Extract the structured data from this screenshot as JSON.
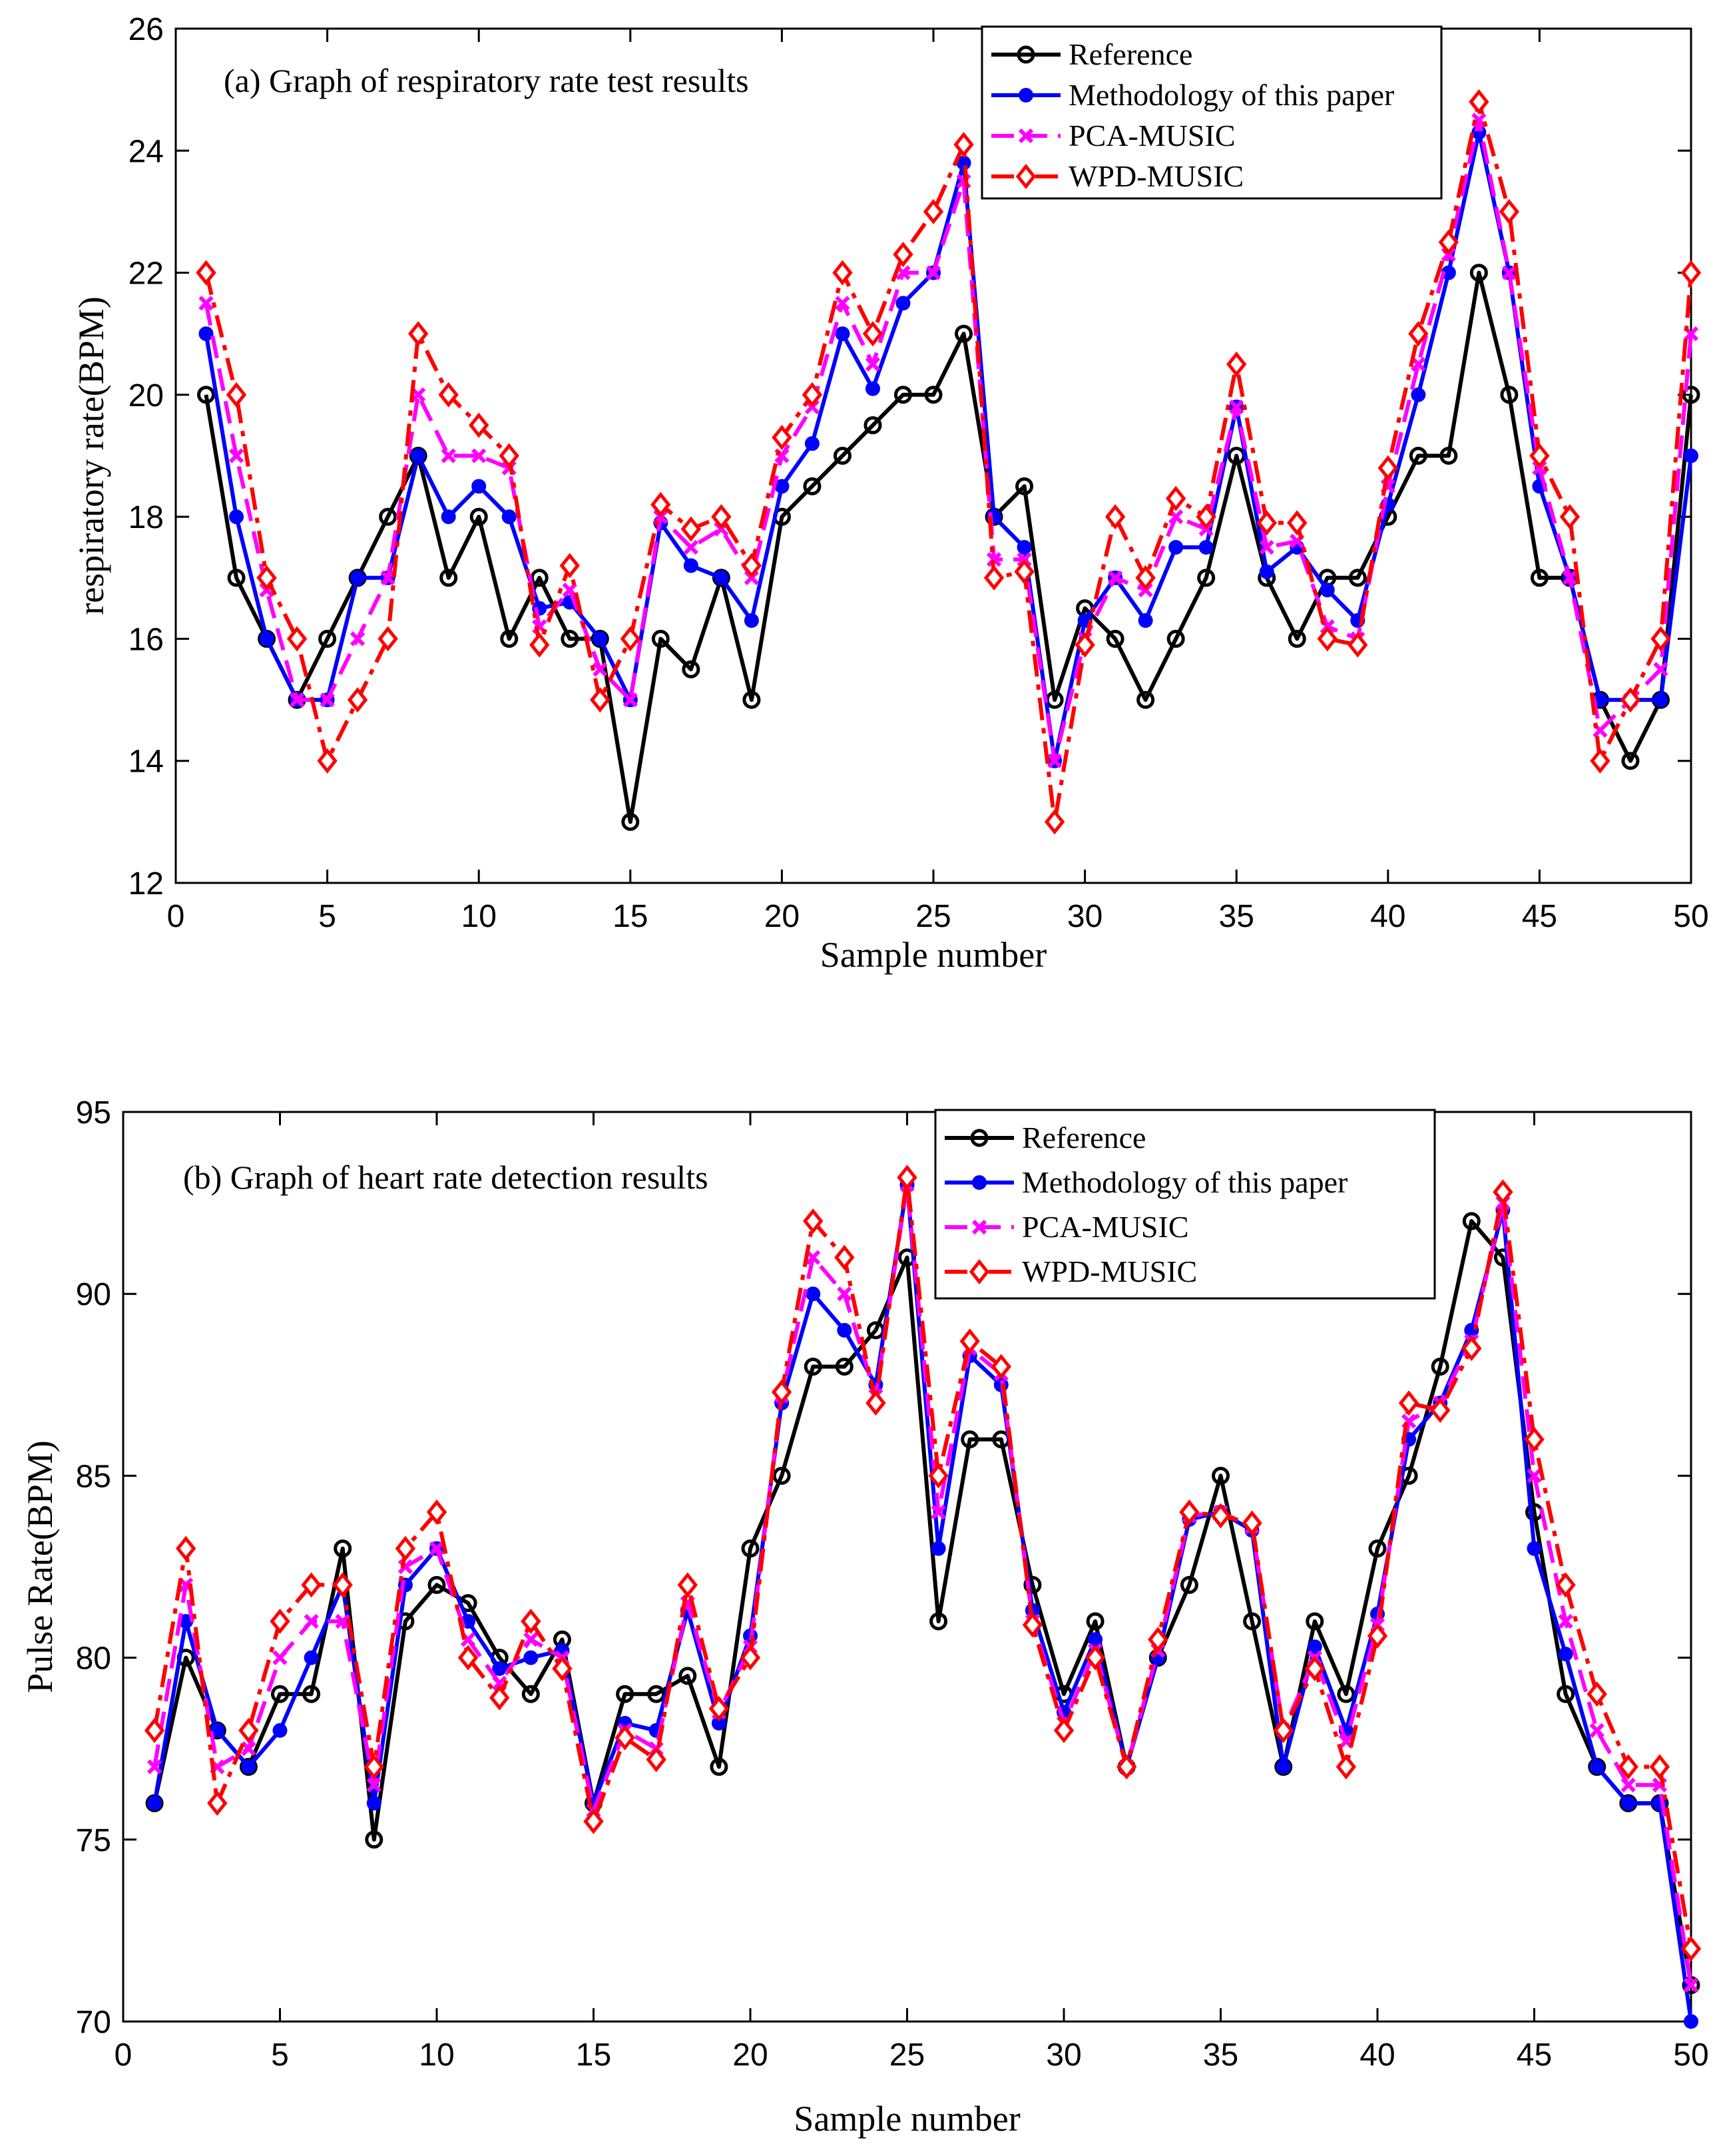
{
  "chart_data": [
    {
      "type": "line",
      "title": "(a) Graph of respiratory rate test results",
      "xlabel": "Sample number",
      "ylabel": "respiratory rate(BPM)",
      "xlim": [
        0,
        50
      ],
      "ylim": [
        12,
        26
      ],
      "xticks": [
        0,
        5,
        10,
        15,
        20,
        25,
        30,
        35,
        40,
        45,
        50
      ],
      "yticks": [
        12,
        14,
        16,
        18,
        20,
        22,
        24,
        26
      ],
      "legend_position": "top-right",
      "x": [
        1,
        2,
        3,
        4,
        5,
        6,
        7,
        8,
        9,
        10,
        11,
        12,
        13,
        14,
        15,
        16,
        17,
        18,
        19,
        20,
        21,
        22,
        23,
        24,
        25,
        26,
        27,
        28,
        29,
        30,
        31,
        32,
        33,
        34,
        35,
        36,
        37,
        38,
        39,
        40,
        41,
        42,
        43,
        44,
        45,
        46,
        47,
        48,
        49,
        50
      ],
      "series": [
        {
          "name": "Reference",
          "color": "#000000",
          "marker": "circle",
          "dash": "solid",
          "values": [
            20,
            17,
            16,
            15,
            16,
            17,
            18,
            19,
            17,
            18,
            16,
            17,
            16,
            16,
            13,
            16,
            15.5,
            17,
            15,
            18,
            18.5,
            19,
            19.5,
            20,
            20,
            21,
            18,
            18.5,
            15,
            16.5,
            16,
            15,
            16,
            17,
            19,
            17,
            16,
            17,
            17,
            18,
            19,
            19,
            22,
            20,
            17,
            17,
            15,
            14,
            15,
            20
          ]
        },
        {
          "name": "Methodology of this paper",
          "color": "#0000ff",
          "marker": "dot",
          "dash": "solid",
          "values": [
            21,
            18,
            16,
            15,
            15,
            17,
            17,
            19,
            18,
            18.5,
            18,
            16.5,
            16.6,
            16,
            15,
            17.9,
            17.2,
            17,
            16.3,
            18.5,
            19.2,
            21,
            20.1,
            21.5,
            22,
            23.8,
            18,
            17.5,
            14,
            16.3,
            17,
            16.3,
            17.5,
            17.5,
            19.8,
            17.1,
            17.5,
            16.8,
            16.3,
            18.2,
            20,
            22,
            24.3,
            22,
            18.5,
            17,
            15,
            15,
            15,
            19
          ]
        },
        {
          "name": "PCA-MUSIC",
          "color": "#ff00ff",
          "marker": "x",
          "dash": "dash",
          "values": [
            21.5,
            19,
            16.8,
            15,
            15,
            16,
            17,
            20,
            19,
            19,
            18.8,
            16.2,
            16.8,
            15.5,
            15,
            18,
            17.5,
            17.8,
            17,
            19,
            19.8,
            21.5,
            20.5,
            22,
            22,
            23.5,
            17.3,
            17.3,
            14,
            16,
            17,
            16.8,
            18,
            17.8,
            19.8,
            17.5,
            17.6,
            16.2,
            16,
            18.5,
            20.5,
            22.3,
            24.5,
            22,
            18.8,
            17,
            14.5,
            15,
            15.5,
            21
          ]
        },
        {
          "name": "WPD-MUSIC",
          "color": "#ff0000",
          "marker": "diamond",
          "dash": "dashdot",
          "values": [
            22,
            20,
            17,
            16,
            14,
            15,
            16,
            21,
            20,
            19.5,
            19,
            15.9,
            17.2,
            15,
            16,
            18.2,
            17.8,
            18,
            17.2,
            19.3,
            20,
            22,
            21,
            22.3,
            23,
            24.1,
            17,
            17.1,
            13,
            15.9,
            18,
            17,
            18.3,
            18,
            20.5,
            17.9,
            17.9,
            16,
            15.9,
            18.8,
            21,
            22.5,
            24.8,
            23,
            19,
            18,
            14,
            15,
            16,
            22
          ]
        }
      ]
    },
    {
      "type": "line",
      "title": "(b) Graph of heart rate detection results",
      "xlabel": "Sample number",
      "ylabel": "Pulse Rate(BPM)",
      "xlim": [
        0,
        50
      ],
      "ylim": [
        70,
        95
      ],
      "xticks": [
        0,
        5,
        10,
        15,
        20,
        25,
        30,
        35,
        40,
        45,
        50
      ],
      "yticks": [
        70,
        75,
        80,
        85,
        90,
        95
      ],
      "legend_position": "top-right",
      "x": [
        1,
        2,
        3,
        4,
        5,
        6,
        7,
        8,
        9,
        10,
        11,
        12,
        13,
        14,
        15,
        16,
        17,
        18,
        19,
        20,
        21,
        22,
        23,
        24,
        25,
        26,
        27,
        28,
        29,
        30,
        31,
        32,
        33,
        34,
        35,
        36,
        37,
        38,
        39,
        40,
        41,
        42,
        43,
        44,
        45,
        46,
        47,
        48,
        49,
        50
      ],
      "series": [
        {
          "name": "Reference",
          "color": "#000000",
          "marker": "circle",
          "dash": "solid",
          "values": [
            76,
            80,
            78,
            77,
            79,
            79,
            83,
            75,
            81,
            82,
            81.5,
            80,
            79,
            80.5,
            76,
            79,
            79,
            79.5,
            77,
            83,
            85,
            88,
            88,
            89,
            91,
            81,
            86,
            86,
            82,
            79,
            81,
            77,
            80,
            82,
            85,
            81,
            77,
            81,
            79,
            83,
            85,
            88,
            92,
            91,
            84,
            79,
            77,
            76,
            76,
            71
          ]
        },
        {
          "name": "Methodology of this paper",
          "color": "#0000ff",
          "marker": "dot",
          "dash": "solid",
          "values": [
            76,
            81,
            78,
            77,
            78,
            80,
            82,
            76,
            82,
            83,
            81,
            79.7,
            80,
            80.2,
            76,
            78.2,
            78,
            81.3,
            78.2,
            80.6,
            87,
            90,
            89,
            87.5,
            93,
            83,
            88.3,
            87.5,
            81.3,
            78.5,
            80.5,
            77,
            80,
            83.8,
            84,
            83.5,
            77,
            80.3,
            78,
            81.2,
            86,
            87,
            89,
            92.3,
            83,
            80.1,
            77,
            76,
            76,
            70
          ]
        },
        {
          "name": "PCA-MUSIC",
          "color": "#ff00ff",
          "marker": "x",
          "dash": "dash",
          "values": [
            77,
            82,
            77,
            77.5,
            80,
            81,
            81,
            76.5,
            82.5,
            83,
            80.5,
            79.3,
            80.5,
            80,
            75.8,
            78,
            77.5,
            81.5,
            78.5,
            80.3,
            87.2,
            91,
            90,
            87.2,
            93,
            84,
            88.5,
            87.8,
            81,
            78.2,
            80.2,
            77,
            80.2,
            83.9,
            84,
            83.6,
            78,
            80,
            77.7,
            80.9,
            86.5,
            87,
            88.7,
            92.5,
            85,
            81,
            78,
            76.5,
            76.5,
            71
          ]
        },
        {
          "name": "WPD-MUSIC",
          "color": "#ff0000",
          "marker": "diamond",
          "dash": "dashdot",
          "values": [
            78,
            83,
            76,
            78,
            81,
            82,
            82,
            77,
            83,
            84,
            80,
            78.9,
            81,
            79.7,
            75.5,
            77.8,
            77.2,
            82,
            78.6,
            80,
            87.3,
            92,
            91,
            87,
            93.2,
            85,
            88.7,
            88,
            80.9,
            78,
            80,
            77,
            80.5,
            84,
            83.9,
            83.7,
            78,
            79.7,
            77,
            80.6,
            87,
            86.8,
            88.5,
            92.8,
            86,
            82,
            79,
            77,
            77,
            72
          ]
        }
      ]
    }
  ]
}
